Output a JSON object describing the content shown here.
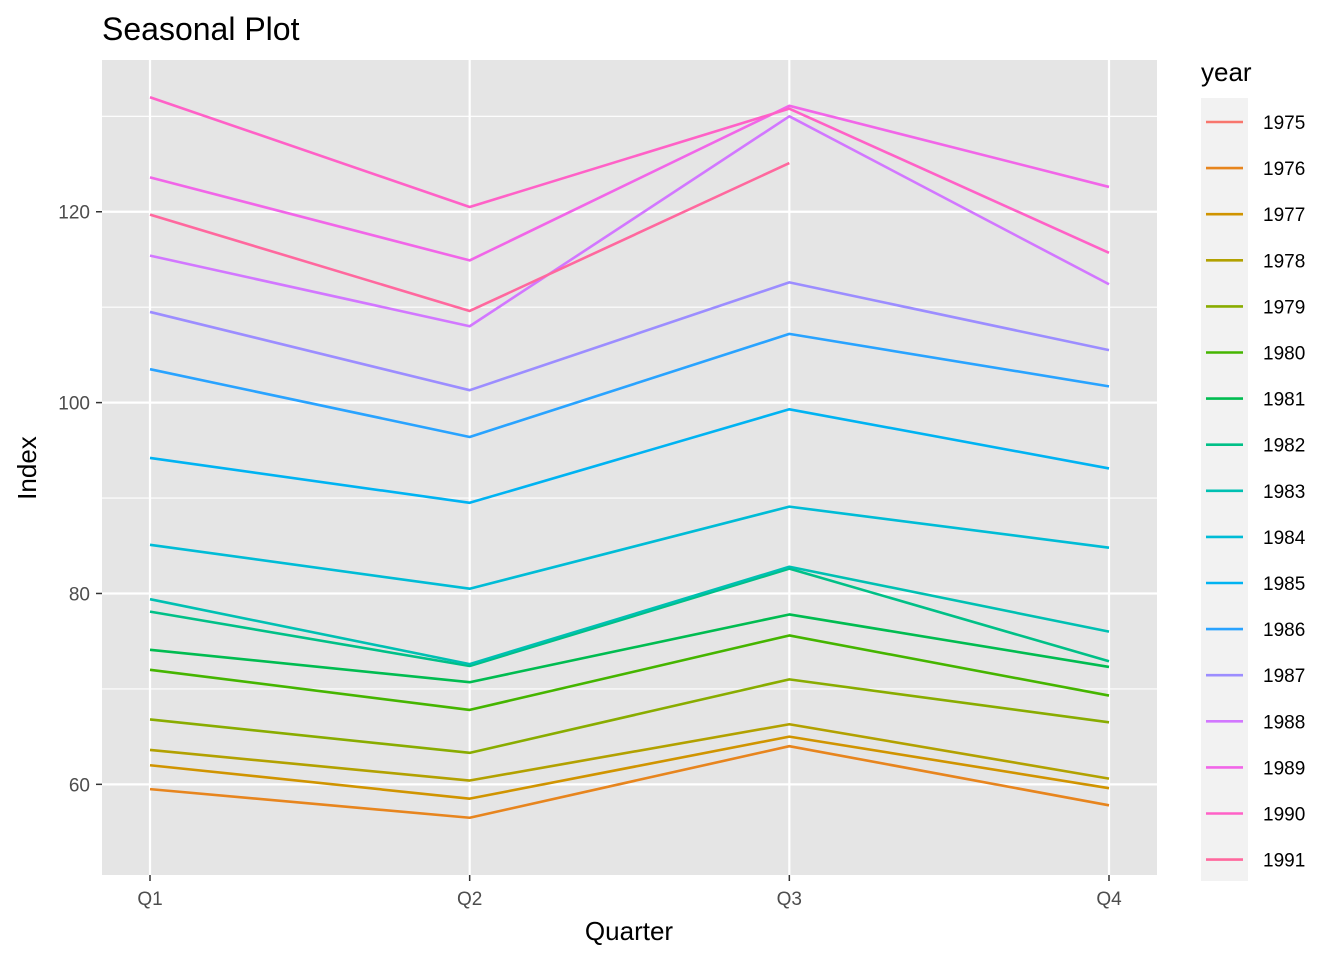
{
  "chart_data": {
    "type": "line",
    "title": "Seasonal Plot",
    "xlabel": "Quarter",
    "ylabel": "Index",
    "categories": [
      "Q1",
      "Q2",
      "Q3",
      "Q4"
    ],
    "ylim": [
      50.5,
      135.9
    ],
    "yticks": [
      60,
      80,
      100,
      120
    ],
    "grid": true,
    "legend": {
      "title": "year",
      "position": "right"
    },
    "panel_background": "#e5e5e5",
    "series": [
      {
        "name": "1975",
        "color": "#F8766D",
        "values": [
          null,
          null,
          null,
          null
        ]
      },
      {
        "name": "1976",
        "color": "#E7851E",
        "values": [
          59.5,
          56.5,
          64.0,
          57.8
        ]
      },
      {
        "name": "1977",
        "color": "#D09400",
        "values": [
          62.0,
          58.5,
          65.0,
          59.6
        ]
      },
      {
        "name": "1978",
        "color": "#B2A100",
        "values": [
          63.6,
          60.4,
          66.3,
          60.6
        ]
      },
      {
        "name": "1979",
        "color": "#89AC00",
        "values": [
          66.8,
          63.3,
          71.0,
          66.5
        ]
      },
      {
        "name": "1980",
        "color": "#45B500",
        "values": [
          72.0,
          67.8,
          75.6,
          69.3
        ]
      },
      {
        "name": "1981",
        "color": "#00BC51",
        "values": [
          74.1,
          70.7,
          77.8,
          72.3
        ]
      },
      {
        "name": "1982",
        "color": "#00C087",
        "values": [
          78.1,
          72.4,
          82.6,
          72.9
        ]
      },
      {
        "name": "1983",
        "color": "#00C0B2",
        "values": [
          79.4,
          72.6,
          82.8,
          76.0
        ]
      },
      {
        "name": "1984",
        "color": "#00BCD6",
        "values": [
          85.1,
          80.5,
          89.1,
          84.8
        ]
      },
      {
        "name": "1985",
        "color": "#00B3F2",
        "values": [
          94.2,
          89.5,
          99.3,
          93.1
        ]
      },
      {
        "name": "1986",
        "color": "#29A3FF",
        "values": [
          103.5,
          96.4,
          107.2,
          101.7
        ]
      },
      {
        "name": "1987",
        "color": "#9C8DFF",
        "values": [
          109.5,
          101.3,
          112.6,
          105.5
        ]
      },
      {
        "name": "1988",
        "color": "#D277FF",
        "values": [
          115.4,
          108.0,
          130.0,
          112.4
        ]
      },
      {
        "name": "1989",
        "color": "#F166E8",
        "values": [
          123.6,
          114.9,
          131.1,
          122.6
        ]
      },
      {
        "name": "1990",
        "color": "#FF61C7",
        "values": [
          132.0,
          120.5,
          130.8,
          115.7
        ]
      },
      {
        "name": "1991",
        "color": "#FF689E",
        "values": [
          119.7,
          109.6,
          125.1,
          null
        ]
      }
    ]
  }
}
